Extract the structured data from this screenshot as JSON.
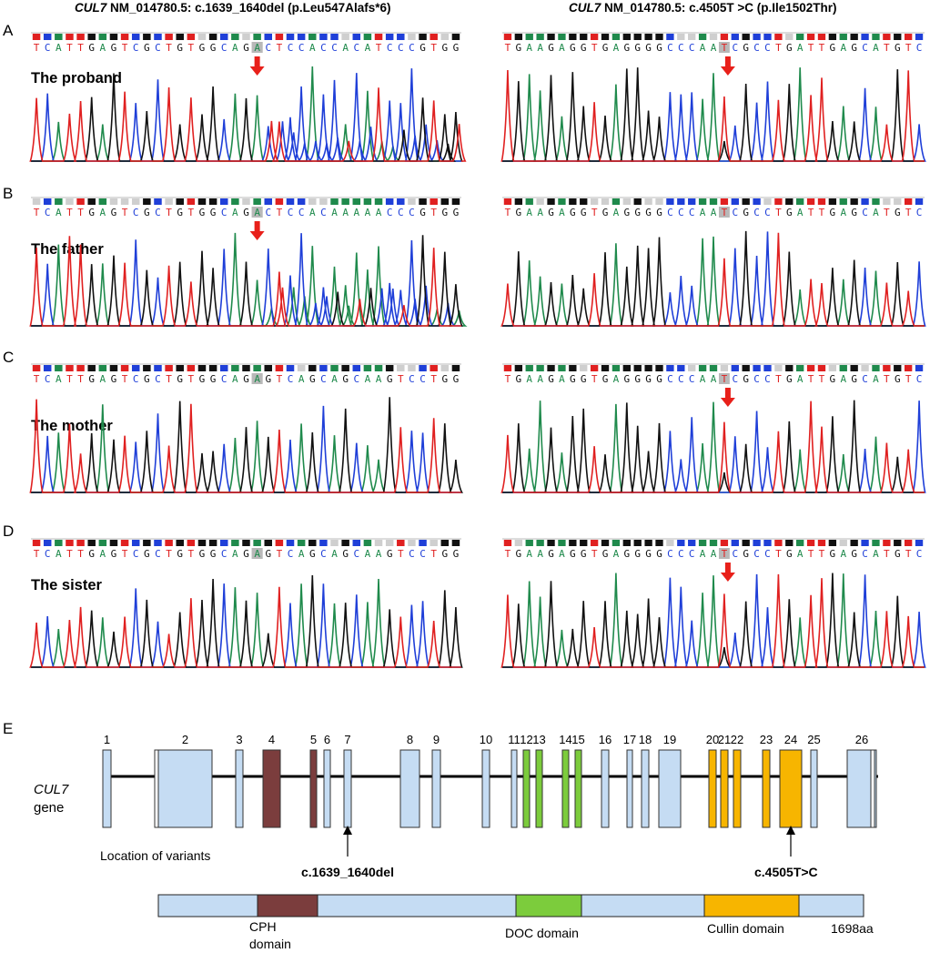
{
  "header": {
    "left": {
      "gene": "CUL7",
      "text": "NM_014780.5:   c.1639_1640del  (p.Leu547Alafs*6)"
    },
    "right": {
      "gene": "CUL7",
      "text": "NM_014780.5:  c.4505T >C (p.Ile1502Thr)"
    }
  },
  "panels": [
    {
      "letter": "A",
      "subject": "The proband",
      "left_seq": "TCATTGAGTCGCTGTGGCAGACTCCACCACATCCCGTGG",
      "right_seq": "TGAAGAGGTGAGGGGCCCAATCGCCTGATTGAGCATGTC",
      "left_arrow": true,
      "right_arrow": true
    },
    {
      "letter": "B",
      "subject": "The father",
      "left_seq": "TCATTGAGTCGCTGTGGCAGACTCCACAAAAACCCGTGG",
      "right_seq": "TGAAGAGGTGAGGGGCCCAATCGCCTGATTGAGCATGTC",
      "left_arrow": true,
      "right_arrow": false
    },
    {
      "letter": "C",
      "subject": "The mother",
      "left_seq": "TCATTGAGTCGCTGTGGCAGAGTCAGCAGCAAGTCCTGG",
      "right_seq": "TGAAGAGGTGAGGGGCCCAATCGCCTGATTGAGCATGTC",
      "left_arrow": false,
      "right_arrow": true
    },
    {
      "letter": "D",
      "subject": "The sister",
      "left_seq": "TCATTGAGTCGCTGTGGCAGAGTCAGCAGCAAGTCCTGG",
      "right_seq": "TGAAGAGGTGAGGGGCCCAATCGCCTGATTGAGCATGTC",
      "left_arrow": false,
      "right_arrow": true
    }
  ],
  "base_colors": {
    "A": "#1f8a4c",
    "C": "#1f3fd8",
    "G": "#111111",
    "T": "#e02020",
    "arrow": "#e8201a"
  },
  "gene_panel": {
    "letter": "E",
    "gene_label_italic": "CUL7",
    "gene_label": "gene",
    "location_label": "Location of variants",
    "variant_left": "c.1639_1640del",
    "variant_right": "c.4505T>C",
    "exons": [
      "1",
      "2",
      "3",
      "4",
      "5",
      "6",
      "7",
      "8",
      "9",
      "10",
      "11",
      "12",
      "13",
      "14",
      "15",
      "16",
      "17",
      "18",
      "19",
      "20",
      "21",
      "22",
      "23",
      "24",
      "25",
      "26"
    ],
    "domains": [
      {
        "name": "CPH domain",
        "line1": "CPH",
        "line2": "domain",
        "color": "#7b3d3d"
      },
      {
        "name": "DOC domain",
        "line1": "DOC domain",
        "line2": "",
        "color": "#7ccc3c"
      },
      {
        "name": "Cullin domain",
        "line1": "Cullin domain",
        "line2": "",
        "color": "#f7b500"
      }
    ],
    "protein_length": "1698aa",
    "exon_color": "#c5dcf3"
  }
}
